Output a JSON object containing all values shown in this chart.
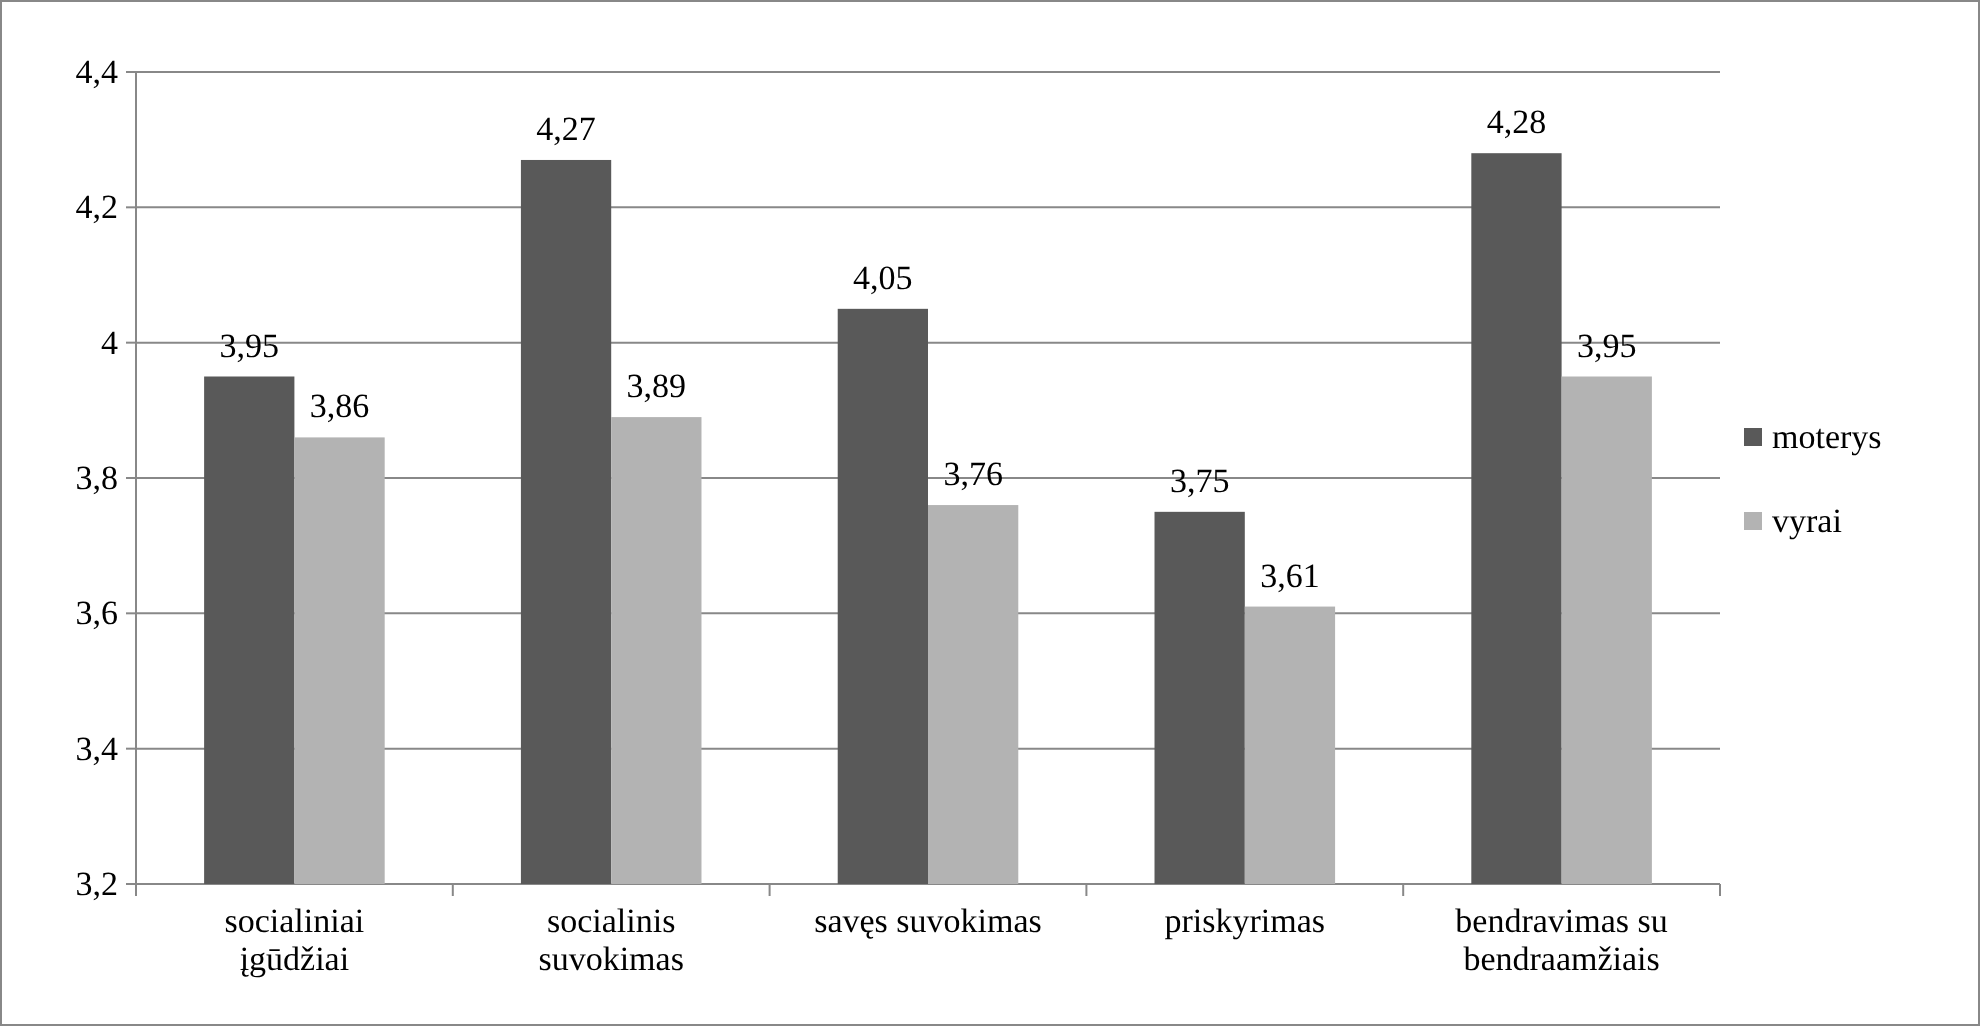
{
  "chart_data": {
    "type": "bar",
    "categories": [
      "socialiniai įgūdžiai",
      "socialinis suvokimas",
      "savęs suvokimas",
      "priskyrimas",
      "bendravimas su bendraamžiais"
    ],
    "series": [
      {
        "name": "moterys",
        "color": "#595959",
        "values": [
          3.95,
          4.27,
          4.05,
          3.75,
          4.28
        ],
        "value_labels": [
          "3,95",
          "4,27",
          "4,05",
          "3,75",
          "4,28"
        ]
      },
      {
        "name": "vyrai",
        "color": "#b3b3b3",
        "values": [
          3.86,
          3.89,
          3.76,
          3.61,
          3.95
        ],
        "value_labels": [
          "3,86",
          "3,89",
          "3,76",
          "3,61",
          "3,95"
        ]
      }
    ],
    "ylim": [
      3.2,
      4.4
    ],
    "yticks": [
      {
        "value": 3.2,
        "label": "3,2"
      },
      {
        "value": 3.4,
        "label": "3,4"
      },
      {
        "value": 3.6,
        "label": "3,6"
      },
      {
        "value": 3.8,
        "label": "3,8"
      },
      4,
      {
        "value": 4.2,
        "label": "4,2"
      },
      {
        "value": 4.4,
        "label": "4,4"
      }
    ],
    "grid": "y",
    "legend": "right"
  }
}
